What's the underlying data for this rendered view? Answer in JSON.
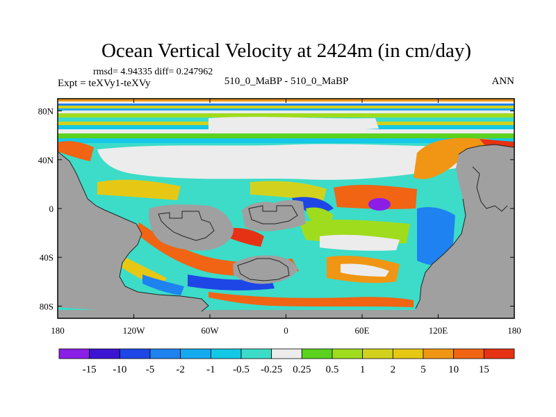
{
  "chart_data": {
    "type": "heatmap",
    "title": "Ocean Vertical Velocity at 2424m (in cm/day)",
    "stats": "rmsd= 4.94335 diff= 0.247962",
    "left_label": "Expt = teXVy1-teXVy",
    "center_label": "510_0_MaBP - 510_0_MaBP",
    "right_label": "ANN",
    "x_range": [
      -180,
      180
    ],
    "y_range": [
      -90,
      90
    ],
    "x_ticks": [
      {
        "value": -180,
        "label": "180"
      },
      {
        "value": -120,
        "label": "120W"
      },
      {
        "value": -60,
        "label": "60W"
      },
      {
        "value": 0,
        "label": "0"
      },
      {
        "value": 60,
        "label": "60E"
      },
      {
        "value": 120,
        "label": "120E"
      },
      {
        "value": 180,
        "label": "180"
      }
    ],
    "y_ticks": [
      {
        "value": 80,
        "label": "80N"
      },
      {
        "value": 40,
        "label": "40N"
      },
      {
        "value": 0,
        "label": "0"
      },
      {
        "value": -40,
        "label": "40S"
      },
      {
        "value": -80,
        "label": "80S"
      }
    ],
    "colorbar": {
      "colors": [
        "#8a1ee6",
        "#3c14d2",
        "#1e46e6",
        "#1e82f0",
        "#14aaf0",
        "#14c8e6",
        "#3cdcc8",
        "#ececec",
        "#5ad21e",
        "#a0dc1e",
        "#d2d21e",
        "#e6c814",
        "#f09614",
        "#f06414",
        "#e63214"
      ],
      "labels": [
        "-15",
        "-10",
        "-5",
        "-2",
        "-1",
        "-0.5",
        "-0.25",
        "0.25",
        "0.5",
        "1",
        "2",
        "5",
        "10",
        "15"
      ]
    },
    "land_color": "#a0a0a0"
  }
}
